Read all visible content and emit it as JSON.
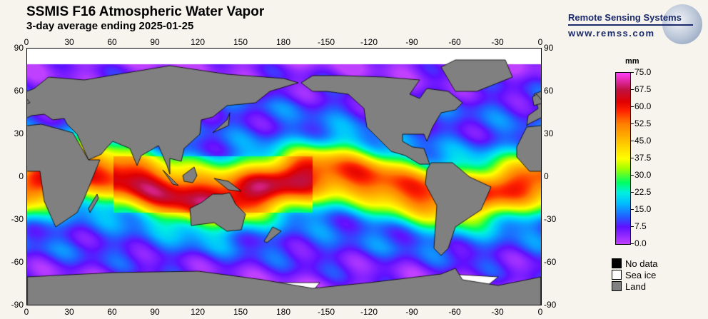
{
  "header": {
    "title": "SSMIS F16 Atmospheric Water Vapor",
    "subtitle": "3-day average ending 2025-01-25"
  },
  "logo": {
    "name": "Remote Sensing Systems",
    "url": "www.remss.com"
  },
  "axes": {
    "lon_ticks": [
      "0",
      "30",
      "60",
      "90",
      "120",
      "150",
      "180",
      "-150",
      "-120",
      "-90",
      "-60",
      "-30",
      "0"
    ],
    "lat_ticks": [
      "90",
      "60",
      "30",
      "0",
      "-30",
      "-60",
      "-90"
    ]
  },
  "legend": {
    "unit": "mm",
    "ticks": [
      "75.0",
      "67.5",
      "60.0",
      "52.5",
      "45.0",
      "37.5",
      "30.0",
      "22.5",
      "15.0",
      "7.5",
      "0.0"
    ],
    "range": [
      0,
      75
    ],
    "items": [
      {
        "label": "No data",
        "color": "#000000"
      },
      {
        "label": "Sea ice",
        "color": "#ffffff"
      },
      {
        "label": "Land",
        "color": "#808080"
      }
    ]
  }
}
